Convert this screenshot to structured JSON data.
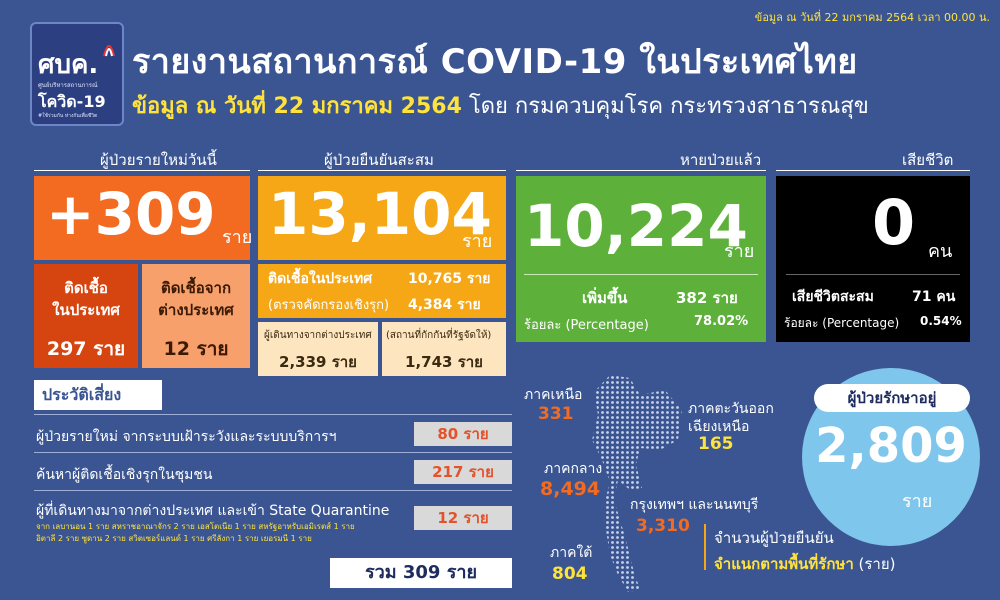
{
  "header": {
    "logo_main": "ศบค.",
    "logo_small": "ศูนย์บริหารสถานการณ์",
    "logo_covid": "โควิด-19",
    "logo_tag": "#ใช้ร่วมกัน ห่างกันเพื่อชีวิต",
    "dateline": "ข้อมูล ณ วันที่ 22 มกราคม 2564 เวลา 00.00 น.",
    "title": "รายงานสถานการณ์ COVID-19 ในประเทศไทย",
    "subtitle_date": "ข้อมูล ณ วันที่ 22 มกราคม 2564",
    "subtitle_rest": " โดย กรมควบคุมโรค กระทรวงสาธารณสุข"
  },
  "new_cases": {
    "label": "ผู้ป่วยรายใหม่วันนี้",
    "value": "+309",
    "unit": "ราย",
    "local_label_1": "ติดเชื้อ",
    "local_label_2": "ในประเทศ",
    "local_value": "297 ราย",
    "import_label_1": "ติดเชื้อจาก",
    "import_label_2": "ต่างประเทศ",
    "import_value": "12 ราย"
  },
  "cumulative": {
    "label": "ผู้ป่วยยืนยันสะสม",
    "value": "13,104",
    "unit": "ราย",
    "domestic_label": "ติดเชื้อในประเทศ",
    "domestic_value": "10,765 ราย",
    "active_label": "(ตรวจคัดกรองเชิงรุก)",
    "active_value": "4,384 ราย",
    "traveler_label": "ผู้เดินทางจากต่างประเทศ",
    "traveler_value": "2,339 ราย",
    "quarantine_label": "(สถานที่กักกันที่รัฐจัดให้)",
    "quarantine_value": "1,743 ราย"
  },
  "recovered": {
    "label": "หายป่วยแล้ว",
    "value": "10,224",
    "unit": "ราย",
    "increase_label": "เพิ่มขึ้น",
    "increase_value": "382 ราย",
    "pct_label": "ร้อยละ (Percentage)",
    "pct_value": "78.02%"
  },
  "deaths": {
    "label": "เสียชีวิต",
    "value": "0",
    "unit": "คน",
    "cum_label": "เสียชีวิตสะสม",
    "cum_value": "71 คน",
    "pct_label": "ร้อยละ (Percentage)",
    "pct_value": "0.54%"
  },
  "risk": {
    "header": "ประวัติเสี่ยง",
    "rows": [
      {
        "label": "ผู้ป่วยรายใหม่ จากระบบเฝ้าระวังและระบบบริการฯ",
        "value": "80 ราย"
      },
      {
        "label": "ค้นหาผู้ติดเชื้อเชิงรุกในชุมชน",
        "value": "217 ราย"
      },
      {
        "label": "ผู้ที่เดินทางมาจากต่างประเทศ และเข้า State Quarantine",
        "value": "12 ราย"
      }
    ],
    "detail_1": "จาก เลบานอน 1 ราย สหราชอาณาจักร 2 ราย เอสโตเนีย 1 ราย สหรัฐอาหรับเอมิเรตส์ 1 ราย",
    "detail_2": "อิตาลี 2 ราย ซูดาน 2 ราย สวิตเซอร์แลนด์ 1 ราย ศรีลังกา 1 ราย เยอรมนี 1 ราย",
    "total": "รวม 309 ราย"
  },
  "regions": {
    "north_name": "ภาคเหนือ",
    "north_value": "331",
    "northeast_name_1": "ภาคตะวันออก",
    "northeast_name_2": "เฉียงเหนือ",
    "northeast_value": "165",
    "central_name": "ภาคกลาง",
    "central_value": "8,494",
    "bangkok_name": "กรุงเทพฯ และนนทบุรี",
    "bangkok_value": "3,310",
    "south_name": "ภาคใต้",
    "south_value": "804",
    "caption_1": "จำนวนผู้ป่วยยืนยัน",
    "caption_2": "จำแนกตามพื้นที่รักษา",
    "caption_unit": " (ราย)"
  },
  "treating": {
    "label": "ผู้ป่วยรักษาอยู่",
    "value": "2,809",
    "unit": "ราย"
  },
  "colors": {
    "background": "#3a5592",
    "orange": "#f26b21",
    "gold": "#f5a716",
    "green": "#5db13b",
    "black": "#000000",
    "yellow_text": "#ffe23b",
    "circle": "#7fc6ec"
  }
}
